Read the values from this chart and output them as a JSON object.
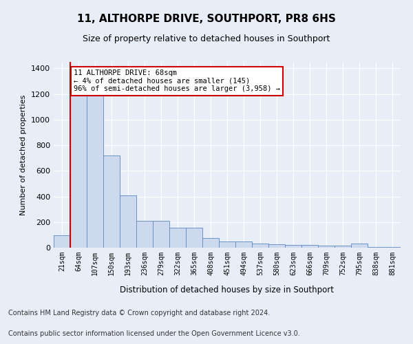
{
  "title": "11, ALTHORPE DRIVE, SOUTHPORT, PR8 6HS",
  "subtitle": "Size of property relative to detached houses in Southport",
  "xlabel": "Distribution of detached houses by size in Southport",
  "ylabel": "Number of detached properties",
  "bar_labels": [
    "21sqm",
    "64sqm",
    "107sqm",
    "150sqm",
    "193sqm",
    "236sqm",
    "279sqm",
    "322sqm",
    "365sqm",
    "408sqm",
    "451sqm",
    "494sqm",
    "537sqm",
    "580sqm",
    "623sqm",
    "666sqm",
    "709sqm",
    "752sqm",
    "795sqm",
    "838sqm",
    "881sqm"
  ],
  "bar_heights": [
    95,
    1230,
    1185,
    720,
    410,
    210,
    210,
    155,
    155,
    75,
    50,
    50,
    30,
    25,
    20,
    20,
    15,
    15,
    30,
    5,
    5
  ],
  "bar_color": "#cdd9ef",
  "bar_edge_color": "#5a87c5",
  "marker_index": 1,
  "marker_color": "#cc0000",
  "annotation_text": "11 ALTHORPE DRIVE: 68sqm\n← 4% of detached houses are smaller (145)\n96% of semi-detached houses are larger (3,958) →",
  "annotation_box_color": "#ffffff",
  "annotation_box_edge": "#cc0000",
  "ylim": [
    0,
    1450
  ],
  "yticks": [
    0,
    200,
    400,
    600,
    800,
    1000,
    1200,
    1400
  ],
  "footer_line1": "Contains HM Land Registry data © Crown copyright and database right 2024.",
  "footer_line2": "Contains public sector information licensed under the Open Government Licence v3.0.",
  "bg_color": "#e8eef8",
  "plot_bg_color": "#e8eef8",
  "grid_color": "#ffffff",
  "title_fontsize": 11,
  "subtitle_fontsize": 9,
  "footer_fontsize": 7
}
